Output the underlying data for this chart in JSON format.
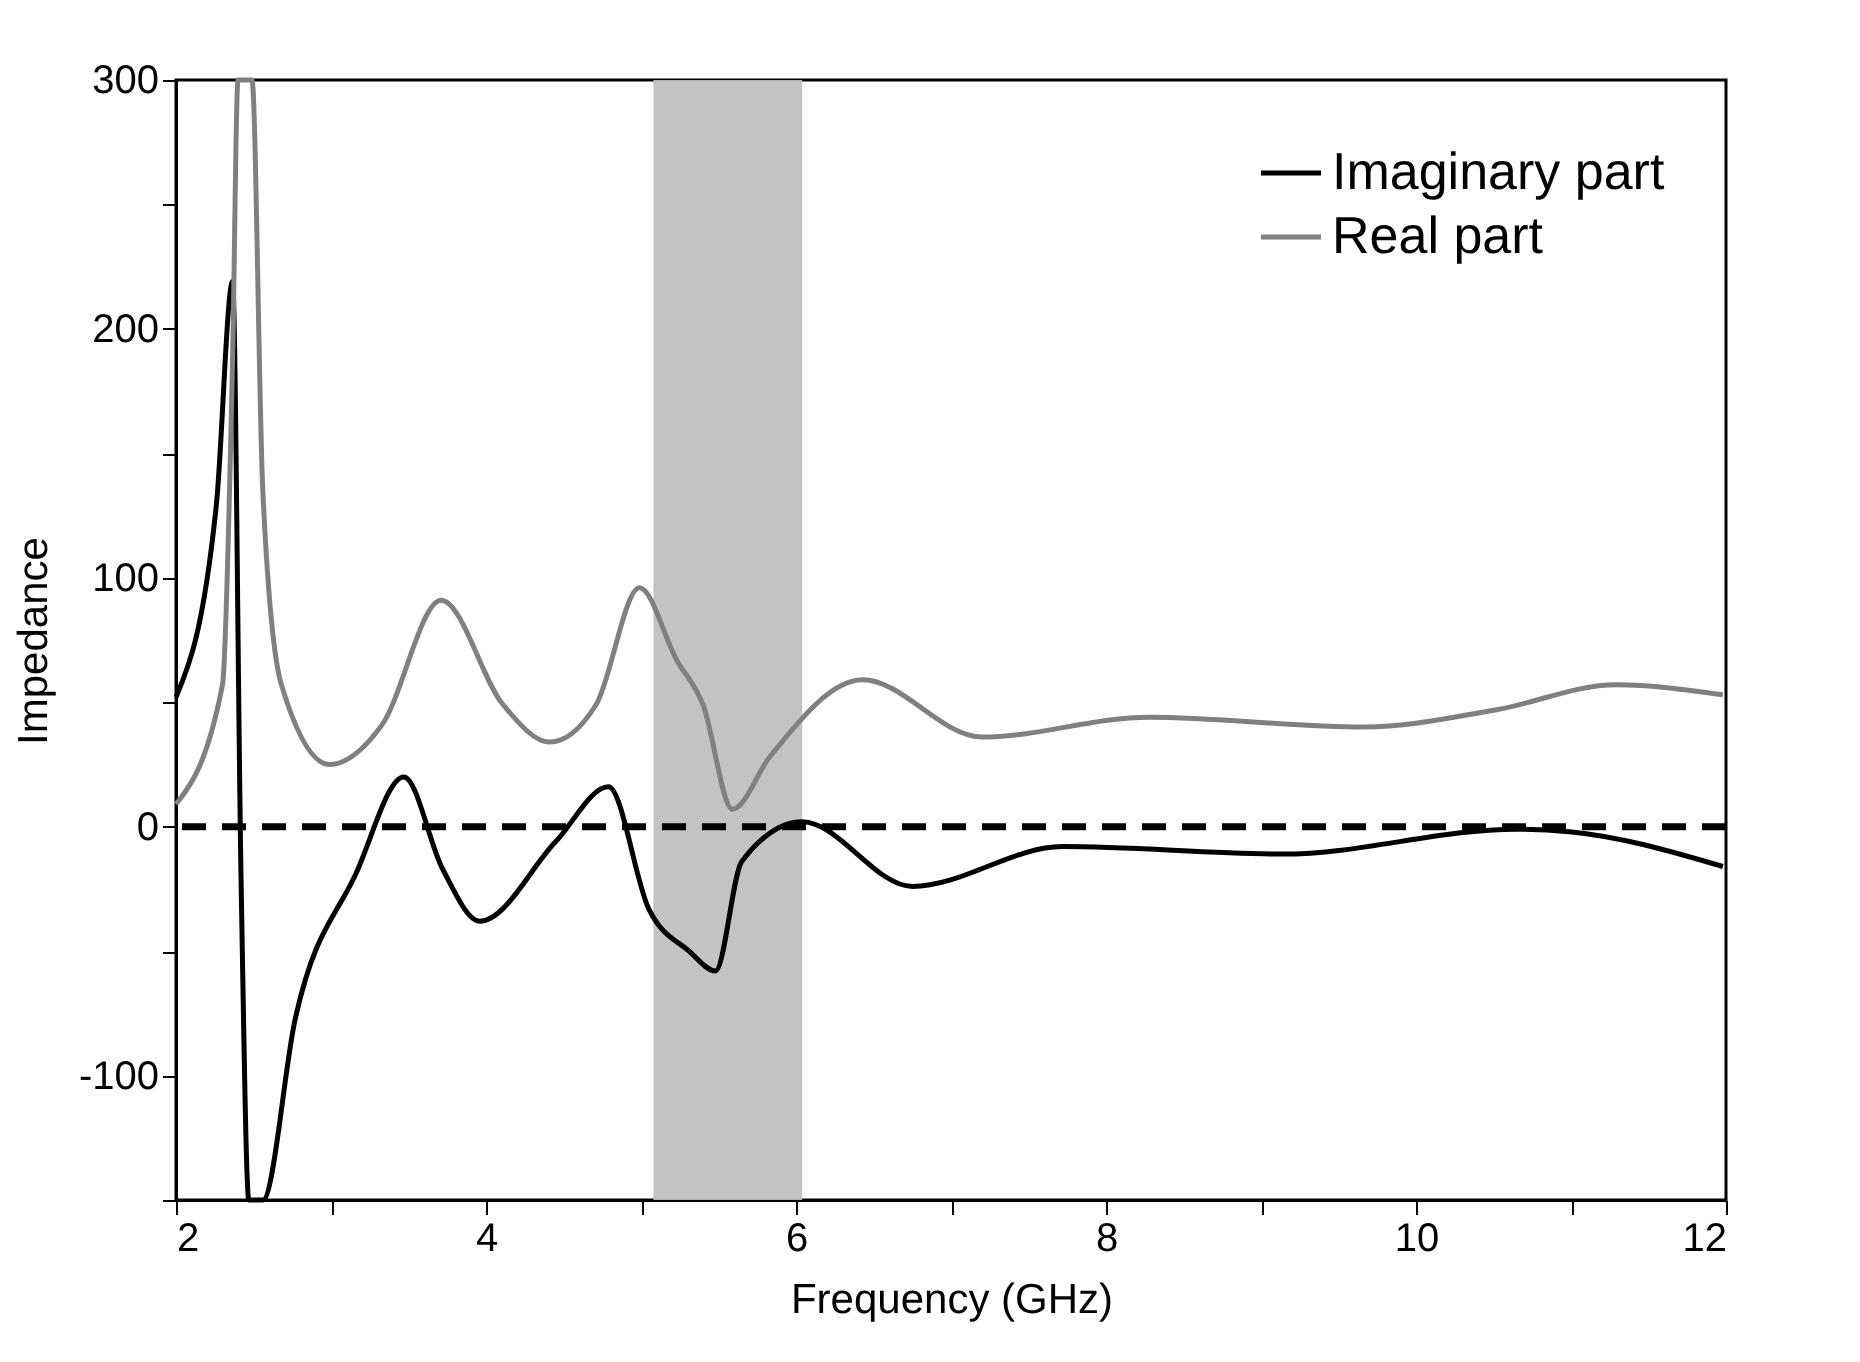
{
  "chart_data": {
    "type": "line",
    "xlabel": "Frequency (GHz)",
    "ylabel": "Impedance",
    "xlim": [
      2,
      12
    ],
    "ylim": [
      -150,
      300
    ],
    "xticks": [
      2,
      {
        "value": 3,
        "label": null
      },
      4,
      {
        "value": 5,
        "label": null
      },
      6,
      {
        "value": 7,
        "label": null
      },
      8,
      {
        "value": 9,
        "label": null
      },
      10,
      {
        "value": 11,
        "label": null
      },
      12
    ],
    "yticks": [
      {
        "value": -150,
        "label": null
      },
      -100,
      {
        "value": -50,
        "label": null
      },
      0,
      {
        "value": 50,
        "label": null
      },
      100,
      {
        "value": 150,
        "label": null
      },
      200,
      {
        "value": 250,
        "label": null
      },
      300
    ],
    "series": [
      {
        "name": "Imaginary part",
        "color": "#000000",
        "x": [
          2.0,
          2.26,
          2.365,
          2.42,
          2.47,
          2.56,
          2.77,
          3.16,
          3.47,
          3.72,
          3.96,
          4.45,
          4.79,
          5.05,
          5.31,
          5.48,
          5.65,
          6.04,
          6.75,
          7.72,
          9.14,
          10.65,
          10.99,
          11.98
        ],
        "values": [
          52,
          129,
          219,
          -22,
          -150,
          -150,
          -77,
          -19,
          20,
          -17,
          -38,
          -6,
          16,
          -33,
          -50,
          -58,
          -14,
          2,
          -24,
          -8,
          -11,
          -1,
          -2,
          -16
        ]
      },
      {
        "name": "Real part",
        "color": "#808080",
        "x": [
          2.0,
          2.3,
          2.365,
          2.4,
          2.49,
          2.56,
          2.68,
          2.99,
          3.33,
          3.71,
          4.11,
          4.41,
          4.71,
          4.99,
          5.23,
          5.4,
          5.59,
          5.83,
          6.43,
          7.2,
          8.28,
          9.66,
          10.52,
          11.29,
          11.98
        ],
        "values": [
          9,
          57,
          188,
          300,
          300,
          135,
          57,
          25,
          41,
          91,
          49,
          34,
          49,
          96,
          67,
          49,
          7,
          28,
          59,
          36,
          44,
          40,
          47,
          57,
          53
        ]
      }
    ],
    "ref_lines": [
      {
        "axis": "y",
        "value": 0,
        "color": "#000000",
        "line_style": "dashed"
      }
    ],
    "bands": [
      {
        "axis": "x",
        "from": 5.08,
        "to": 6.04,
        "color": "#c0c0c0"
      }
    ],
    "legend": "top right",
    "grid": false,
    "marker": "none",
    "line_style": "solid"
  }
}
